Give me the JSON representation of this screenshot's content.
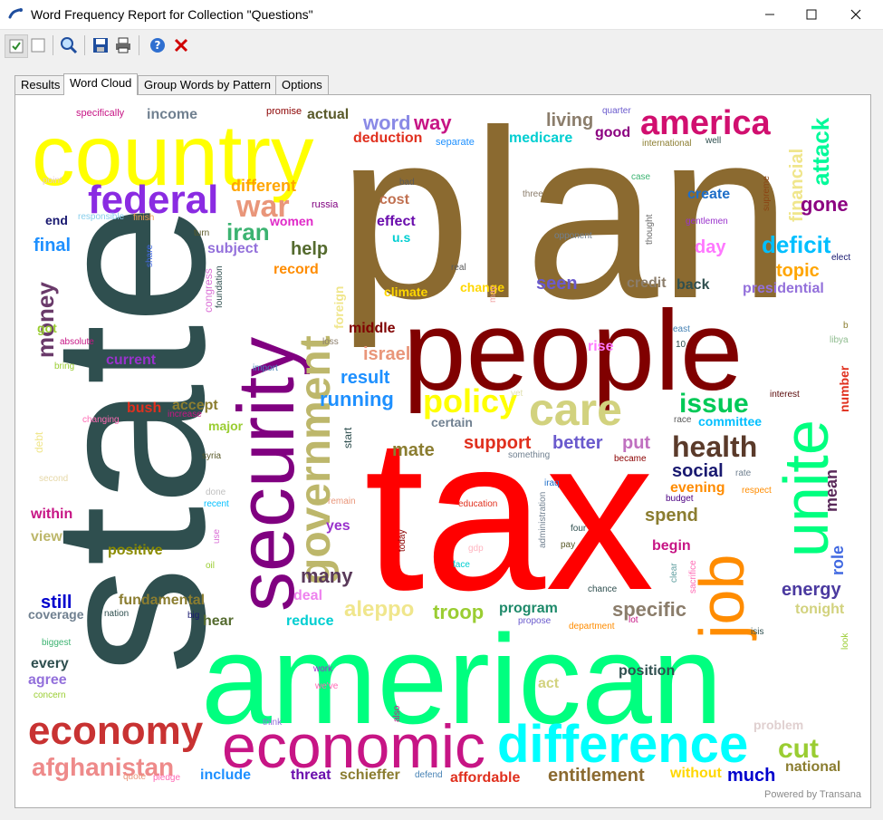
{
  "window": {
    "title": "Word Frequency Report for Collection \"Questions\""
  },
  "toolbar": {
    "icons": [
      "select-all-checkbox-icon",
      "deselect-checkbox-icon",
      "search-icon",
      "save-icon",
      "print-icon",
      "help-icon",
      "close-x-icon"
    ]
  },
  "tabs": [
    "Results",
    "Word Cloud",
    "Group Words by Pattern",
    "Options"
  ],
  "active_tab": "Word Cloud",
  "cloud": {
    "powered_by": "Powered by Transana",
    "words": [
      {
        "t": "plan",
        "c": "#8b6a30"
      },
      {
        "t": "state",
        "c": "#2f4f4f"
      },
      {
        "t": "tax",
        "c": "#ff0000"
      },
      {
        "t": "american",
        "c": "#00ff7f"
      },
      {
        "t": "people",
        "c": "#800000"
      },
      {
        "t": "country",
        "c": "#ffff00"
      },
      {
        "t": "security",
        "c": "#800080"
      },
      {
        "t": "unite",
        "c": "#00ff7f"
      },
      {
        "t": "job",
        "c": "#ff8c00"
      },
      {
        "t": "economic",
        "c": "#c71585"
      },
      {
        "t": "difference",
        "c": "#00ffff"
      },
      {
        "t": "america",
        "c": "#d10f6f"
      },
      {
        "t": "economy",
        "c": "#c83232"
      },
      {
        "t": "federal",
        "c": "#8a2be2"
      },
      {
        "t": "care",
        "c": "#d2d27e"
      },
      {
        "t": "government",
        "c": "#bdb76b"
      },
      {
        "t": "policy",
        "c": "#ffff00"
      },
      {
        "t": "war",
        "c": "#e9967a"
      },
      {
        "t": "health",
        "c": "#5a3a2a"
      },
      {
        "t": "afghanistan",
        "c": "#ee8a8a"
      },
      {
        "t": "deficit",
        "c": "#00bfff"
      },
      {
        "t": "issue",
        "c": "#00c957"
      },
      {
        "t": "cut",
        "c": "#9acd32"
      },
      {
        "t": "iran",
        "c": "#3cb371"
      },
      {
        "t": "attack",
        "c": "#00fa9a"
      },
      {
        "t": "financial",
        "c": "#f0e68c"
      },
      {
        "t": "gone",
        "c": "#8b0080"
      },
      {
        "t": "running",
        "c": "#1e90ff"
      },
      {
        "t": "israel",
        "c": "#e9967a"
      },
      {
        "t": "result",
        "c": "#1e90ff"
      },
      {
        "t": "money",
        "c": "#6a3a6a"
      },
      {
        "t": "aleppo",
        "c": "#f0e68c"
      },
      {
        "t": "many",
        "c": "#5a3a5a"
      },
      {
        "t": "troop",
        "c": "#9acd32"
      },
      {
        "t": "specific",
        "c": "#8b7d6b"
      },
      {
        "t": "energy",
        "c": "#4b3aa0"
      },
      {
        "t": "role",
        "c": "#4169e1"
      },
      {
        "t": "mean",
        "c": "#5a2a5a"
      },
      {
        "t": "entitlement",
        "c": "#8b6a30"
      },
      {
        "t": "much",
        "c": "#0000cd"
      },
      {
        "t": "national",
        "c": "#8b7d30"
      },
      {
        "t": "word",
        "c": "#8a8ae6"
      },
      {
        "t": "way",
        "c": "#c71585"
      },
      {
        "t": "living",
        "c": "#8b7d6b"
      },
      {
        "t": "different",
        "c": "#ffa500"
      },
      {
        "t": "topic",
        "c": "#ffa500"
      },
      {
        "t": "presidential",
        "c": "#9370db"
      },
      {
        "t": "help",
        "c": "#556b2f"
      },
      {
        "t": "final",
        "c": "#1e90ff"
      },
      {
        "t": "day",
        "c": "#ff77ff"
      },
      {
        "t": "seen",
        "c": "#6a5acd"
      },
      {
        "t": "better",
        "c": "#6a5acd"
      },
      {
        "t": "support",
        "c": "#e0301e"
      },
      {
        "t": "put",
        "c": "#c071c0"
      },
      {
        "t": "mate",
        "c": "#8b7d30"
      },
      {
        "t": "social",
        "c": "#191970"
      },
      {
        "t": "spend",
        "c": "#8b7d30"
      },
      {
        "t": "evening",
        "c": "#ff8c00"
      },
      {
        "t": "create",
        "c": "#1e6ec8"
      },
      {
        "t": "committee",
        "c": "#00bfff"
      },
      {
        "t": "number",
        "c": "#e0301e"
      },
      {
        "t": "program",
        "c": "#1e8a6a"
      },
      {
        "t": "fundamental",
        "c": "#8b7d30"
      },
      {
        "t": "positive",
        "c": "#8b8b00"
      },
      {
        "t": "include",
        "c": "#1e90ff"
      },
      {
        "t": "threat",
        "c": "#6a0dad"
      },
      {
        "t": "schieffer",
        "c": "#8b7d30"
      },
      {
        "t": "affordable",
        "c": "#e0301e"
      },
      {
        "t": "without",
        "c": "#ffd700"
      },
      {
        "t": "position",
        "c": "#2f4f4f"
      },
      {
        "t": "deduction",
        "c": "#e0301e"
      },
      {
        "t": "medicare",
        "c": "#00ced1"
      },
      {
        "t": "good",
        "c": "#8b0080"
      },
      {
        "t": "actual",
        "c": "#5a5a2a"
      },
      {
        "t": "income",
        "c": "#708090"
      },
      {
        "t": "women",
        "c": "#e02ac8"
      },
      {
        "t": "subject",
        "c": "#9370db"
      },
      {
        "t": "record",
        "c": "#ff8c00"
      },
      {
        "t": "cost",
        "c": "#c07050"
      },
      {
        "t": "effect",
        "c": "#6a0dad"
      },
      {
        "t": "climate",
        "c": "#ffd700"
      },
      {
        "t": "change",
        "c": "#ffd700"
      },
      {
        "t": "credit",
        "c": "#8b7d6b"
      },
      {
        "t": "back",
        "c": "#2f4f4f"
      },
      {
        "t": "current",
        "c": "#9932cc"
      },
      {
        "t": "accept",
        "c": "#8b7d30"
      },
      {
        "t": "bush",
        "c": "#e0301e"
      },
      {
        "t": "major",
        "c": "#9acd32"
      },
      {
        "t": "middle",
        "c": "#800000"
      },
      {
        "t": "still",
        "c": "#0000cd"
      },
      {
        "t": "coverage",
        "c": "#708090"
      },
      {
        "t": "hear",
        "c": "#556b2f"
      },
      {
        "t": "reduce",
        "c": "#00ced1"
      },
      {
        "t": "deal",
        "c": "#ee82ee"
      },
      {
        "t": "every",
        "c": "#2f4f4f"
      },
      {
        "t": "agree",
        "c": "#9370db"
      },
      {
        "t": "within",
        "c": "#c71585"
      },
      {
        "t": "view",
        "c": "#bdb76b"
      },
      {
        "t": "yes",
        "c": "#9932cc"
      },
      {
        "t": "begin",
        "c": "#c71585"
      },
      {
        "t": "tonight",
        "c": "#d2d27e"
      },
      {
        "t": "rise",
        "c": "#ff77ff"
      },
      {
        "t": "certain",
        "c": "#708090"
      },
      {
        "t": "act",
        "c": "#d2d27e"
      },
      {
        "t": "problem",
        "c": "#e0d0d0"
      },
      {
        "t": "u.s",
        "c": "#00ced1"
      },
      {
        "t": "got",
        "c": "#9acd32"
      },
      {
        "t": "end",
        "c": "#191970"
      },
      {
        "t": "specifically",
        "c": "#c71585"
      },
      {
        "t": "promise",
        "c": "#8b0000"
      },
      {
        "t": "russia",
        "c": "#800080"
      },
      {
        "t": "separate",
        "c": "#1e90ff"
      },
      {
        "t": "quarter",
        "c": "#6a5acd"
      },
      {
        "t": "international",
        "c": "#8b7d30"
      },
      {
        "t": "well",
        "c": "#2f4f4f"
      },
      {
        "t": "bad",
        "c": "#5a5a5a"
      },
      {
        "t": "three",
        "c": "#8b7d6b"
      },
      {
        "t": "case",
        "c": "#3cb371"
      },
      {
        "t": "supreme",
        "c": "#8b4513"
      },
      {
        "t": "gentlemen",
        "c": "#9932cc"
      },
      {
        "t": "thought",
        "c": "#6a6a6a"
      },
      {
        "t": "opponent",
        "c": "#708090"
      },
      {
        "t": "elect",
        "c": "#191970"
      },
      {
        "t": "responsible",
        "c": "#87ceeb"
      },
      {
        "t": "finish",
        "c": "#f0a050"
      },
      {
        "t": "turn",
        "c": "#5a5a2a"
      },
      {
        "t": "share",
        "c": "#4169e1"
      },
      {
        "t": "foundation",
        "c": "#2f4f4f"
      },
      {
        "t": "congress",
        "c": "#da70d6"
      },
      {
        "t": "real",
        "c": "#5a5a5a"
      },
      {
        "t": "may",
        "c": "#f0a0a0"
      },
      {
        "t": "point",
        "c": "#e6c8c8"
      },
      {
        "t": "foreign",
        "c": "#f0e68c"
      },
      {
        "t": "loss",
        "c": "#8b7d6b"
      },
      {
        "t": "absolute",
        "c": "#c71585"
      },
      {
        "t": "bring",
        "c": "#9acd32"
      },
      {
        "t": "import",
        "c": "#4682b4"
      },
      {
        "t": "east",
        "c": "#4682b4"
      },
      {
        "t": "10",
        "c": "#2f4f4f"
      },
      {
        "t": "b",
        "c": "#8b7d30"
      },
      {
        "t": "libya",
        "c": "#8fbc8f"
      },
      {
        "t": "interest",
        "c": "#5a0a0a"
      },
      {
        "t": "debt",
        "c": "#f0e68c"
      },
      {
        "t": "changing",
        "c": "#ff69b4"
      },
      {
        "t": "increase",
        "c": "#c71585"
      },
      {
        "t": "syria",
        "c": "#5a5a2a"
      },
      {
        "t": "second",
        "c": "#e6d8a8"
      },
      {
        "t": "done",
        "c": "#c0c0c0"
      },
      {
        "t": "recent",
        "c": "#00bfff"
      },
      {
        "t": "start",
        "c": "#2f4f4f"
      },
      {
        "t": "yet",
        "c": "#e0e0b0"
      },
      {
        "t": "something",
        "c": "#708090"
      },
      {
        "t": "race",
        "c": "#5a5a5a"
      },
      {
        "t": "rate",
        "c": "#708090"
      },
      {
        "t": "became",
        "c": "#8b0000"
      },
      {
        "t": "budget",
        "c": "#4b0082"
      },
      {
        "t": "respect",
        "c": "#ff8c00"
      },
      {
        "t": "iraq",
        "c": "#1e6ec8"
      },
      {
        "t": "remain",
        "c": "#e9967a"
      },
      {
        "t": "education",
        "c": "#e0301e"
      },
      {
        "t": "administration",
        "c": "#708090"
      },
      {
        "t": "four",
        "c": "#2f4f4f"
      },
      {
        "t": "pay",
        "c": "#5a5a2a"
      },
      {
        "t": "use",
        "c": "#da70d6"
      },
      {
        "t": "today",
        "c": "#8b0000"
      },
      {
        "t": "gdp",
        "c": "#ffb6c1"
      },
      {
        "t": "face",
        "c": "#00ced1"
      },
      {
        "t": "oil",
        "c": "#9acd32"
      },
      {
        "t": "clear",
        "c": "#5f9ea0"
      },
      {
        "t": "sacrifice",
        "c": "#ff69b4"
      },
      {
        "t": "chance",
        "c": "#2f4f4f"
      },
      {
        "t": "nation",
        "c": "#2f4f4f"
      },
      {
        "t": "big",
        "c": "#191970"
      },
      {
        "t": "propose",
        "c": "#6a5acd"
      },
      {
        "t": "lot",
        "c": "#c71585"
      },
      {
        "t": "department",
        "c": "#ff8c00"
      },
      {
        "t": "isis",
        "c": "#2f4f4f"
      },
      {
        "t": "look",
        "c": "#9acd32"
      },
      {
        "t": "biggest",
        "c": "#3cb371"
      },
      {
        "t": "work",
        "c": "#9932cc"
      },
      {
        "t": "we've",
        "c": "#ff69b4"
      },
      {
        "t": "concern",
        "c": "#9acd32"
      },
      {
        "t": "also",
        "c": "#c71585"
      },
      {
        "t": "think",
        "c": "#9370db"
      },
      {
        "t": "quote",
        "c": "#e9967a"
      },
      {
        "t": "pledge",
        "c": "#ff69b4"
      },
      {
        "t": "defend",
        "c": "#4682b4"
      }
    ]
  }
}
